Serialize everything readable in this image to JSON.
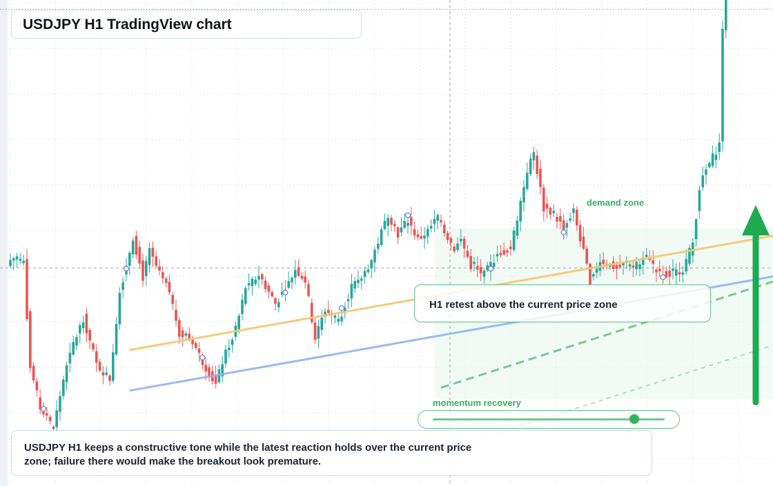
{
  "header": {
    "title": "USDJPY H1 TradingView chart"
  },
  "annotations": {
    "zone_label": "demand zone",
    "retest_note": "H1 retest above the current price zone",
    "momentum_label": "momentum recovery",
    "momentum_level": 0.87
  },
  "caption": "USDJPY H1 keeps a constructive tone while the latest reaction holds over the current price zone; failure there would make the breakout look premature.",
  "colors": {
    "up": "#26a69a",
    "down": "#ef5350",
    "yellow_line": "#f6c46b",
    "blue_line": "#8fb2f0",
    "accent_green": "#1faa4f",
    "box_border": "#c9dcf2"
  },
  "icons": {
    "arrow": "up-arrow-icon",
    "marker": "circle-marker-icon"
  },
  "chart_data": {
    "type": "candlestick",
    "symbol": "USDJPY",
    "timeframe": "H1",
    "grid": true,
    "ylim": [
      0,
      100
    ],
    "waypoints": [
      [
        0,
        71
      ],
      [
        2,
        72
      ],
      [
        4,
        70
      ],
      [
        6,
        34
      ],
      [
        9,
        20
      ],
      [
        13,
        13
      ],
      [
        16,
        30
      ],
      [
        19,
        42
      ],
      [
        22,
        51
      ],
      [
        26,
        35
      ],
      [
        30,
        30
      ],
      [
        33,
        60
      ],
      [
        37,
        79
      ],
      [
        40,
        65
      ],
      [
        42,
        74
      ],
      [
        45,
        66
      ],
      [
        48,
        60
      ],
      [
        51,
        46
      ],
      [
        55,
        43
      ],
      [
        58,
        36
      ],
      [
        62,
        28
      ],
      [
        64,
        36
      ],
      [
        68,
        47
      ],
      [
        71,
        61
      ],
      [
        75,
        66
      ],
      [
        80,
        56
      ],
      [
        84,
        63
      ],
      [
        86,
        68
      ],
      [
        89,
        64
      ],
      [
        92,
        44
      ],
      [
        95,
        54
      ],
      [
        99,
        50
      ],
      [
        103,
        62
      ],
      [
        105,
        63
      ],
      [
        109,
        71
      ],
      [
        114,
        87
      ],
      [
        117,
        80
      ],
      [
        120,
        85
      ],
      [
        123,
        78
      ],
      [
        126,
        81
      ],
      [
        129,
        86
      ],
      [
        132,
        79
      ],
      [
        134,
        75
      ],
      [
        136,
        78
      ],
      [
        139,
        69
      ],
      [
        143,
        66
      ],
      [
        147,
        73
      ],
      [
        151,
        75
      ],
      [
        156,
        102
      ],
      [
        158,
        108
      ],
      [
        161,
        89
      ],
      [
        164,
        87
      ],
      [
        167,
        82
      ],
      [
        170,
        88
      ],
      [
        175,
        64
      ],
      [
        178,
        71
      ],
      [
        183,
        68
      ],
      [
        186,
        70
      ],
      [
        189,
        69
      ],
      [
        192,
        73
      ],
      [
        195,
        67
      ],
      [
        199,
        66
      ],
      [
        203,
        68
      ],
      [
        206,
        77
      ],
      [
        208,
        96
      ],
      [
        210,
        102
      ],
      [
        214,
        111
      ],
      [
        216,
        192
      ],
      [
        218,
        176
      ],
      [
        220,
        203
      ],
      [
        222,
        182
      ],
      [
        226,
        178
      ]
    ],
    "trendlines": [
      {
        "style": "solid",
        "color": "yellow",
        "from": [
          36,
          40
        ],
        "to": [
          263,
          86
        ]
      },
      {
        "style": "solid",
        "color": "blue",
        "from": [
          36,
          26
        ],
        "to": [
          263,
          72
        ]
      },
      {
        "style": "dashed",
        "color": "green",
        "from": [
          130,
          27
        ],
        "to": [
          256,
          73
        ]
      },
      {
        "style": "dashed-light",
        "color": "green",
        "from": [
          130,
          5
        ],
        "to": [
          256,
          51
        ]
      }
    ],
    "reference_levels": [
      {
        "name": "current",
        "value": 68.3
      },
      {
        "name": "high",
        "value": 157.5
      }
    ],
    "markers_at_index": [
      10,
      35,
      58,
      83,
      100,
      120,
      145,
      167,
      197,
      217
    ],
    "zone": {
      "x_range": [
        128,
        259
      ],
      "y_range": [
        23,
        82
      ]
    },
    "arrow": {
      "x": 225,
      "from": 22,
      "to": 90
    }
  }
}
